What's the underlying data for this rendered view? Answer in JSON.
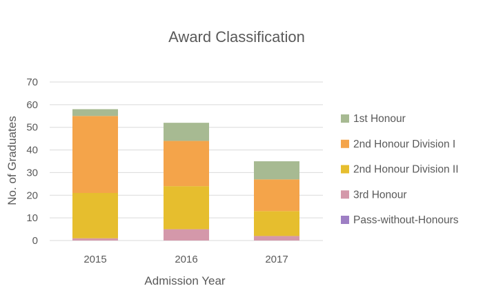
{
  "chart_data": {
    "type": "bar",
    "stacked": true,
    "title": "Award Classification",
    "xlabel": "Admission Year",
    "ylabel": "No. of Graduates",
    "categories": [
      "2015",
      "2016",
      "2017"
    ],
    "ylim": [
      0,
      70
    ],
    "yticks": [
      0,
      10,
      20,
      30,
      40,
      50,
      60,
      70
    ],
    "grid": true,
    "legend_position": "right",
    "series": [
      {
        "name": "Pass-without-Honours",
        "color": "#9e7fc4",
        "values": [
          0,
          0,
          0
        ]
      },
      {
        "name": "3rd Honour",
        "color": "#d498aa",
        "values": [
          1,
          5,
          2
        ]
      },
      {
        "name": "2nd Honour Division II",
        "color": "#e6be2e",
        "values": [
          20,
          19,
          11
        ]
      },
      {
        "name": "2nd Honour Division I",
        "color": "#f4a44a",
        "values": [
          34,
          20,
          14
        ]
      },
      {
        "name": "1st Honour",
        "color": "#a7ba92",
        "values": [
          3,
          8,
          8
        ]
      }
    ]
  }
}
